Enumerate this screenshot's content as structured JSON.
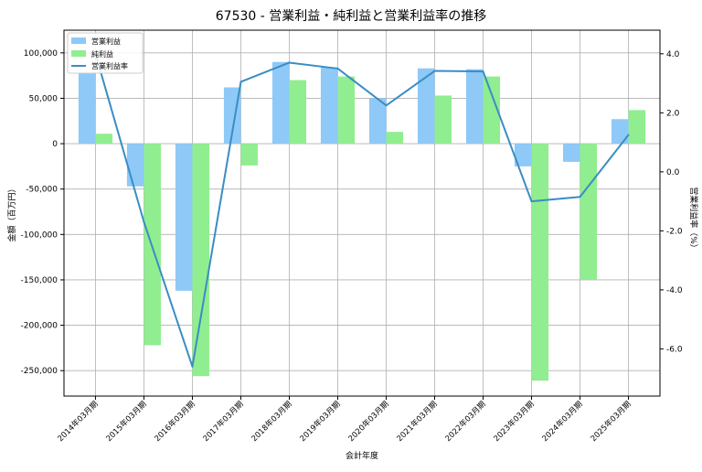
{
  "chart_data": {
    "type": "bar",
    "title": "67530 - 営業利益・純利益と営業利益率の推移",
    "xlabel": "会計年度",
    "ylabel": "金額（百万円）",
    "y2label": "営業利益率（%）",
    "categories": [
      "2014年03月期",
      "2015年03月期",
      "2016年03月期",
      "2017年03月期",
      "2018年03月期",
      "2019年03月期",
      "2020年03月期",
      "2021年03月期",
      "2022年03月期",
      "2023年03月期",
      "2024年03月期",
      "2025年03月期"
    ],
    "series": [
      {
        "name": "営業利益",
        "kind": "bar",
        "axis": "left",
        "color": "#8ec9f7",
        "values": [
          78000,
          -47000,
          -162000,
          62000,
          90000,
          84000,
          50000,
          83000,
          82000,
          -25000,
          -20000,
          27000
        ]
      },
      {
        "name": "純利益",
        "kind": "bar",
        "axis": "left",
        "color": "#90ee90",
        "values": [
          11000,
          -222000,
          -256000,
          -24000,
          70000,
          74000,
          13000,
          53000,
          74000,
          -261000,
          -150000,
          37000
        ]
      },
      {
        "name": "営業利益率",
        "kind": "line",
        "axis": "right",
        "color": "#3a8dc4",
        "values": [
          4.0,
          -1.7,
          -6.6,
          3.05,
          3.7,
          3.5,
          2.25,
          3.42,
          3.4,
          -1.0,
          -0.85,
          1.25
        ]
      }
    ],
    "ylim": [
      -278000,
      125000
    ],
    "y2lim": [
      -7.6,
      4.8
    ],
    "yticks": [
      -250000,
      -200000,
      -150000,
      -100000,
      -50000,
      0,
      50000,
      100000
    ],
    "ytick_labels": [
      "-250,000",
      "-200,000",
      "-150,000",
      "-100,000",
      "-50,000",
      "0",
      "50,000",
      "100,000"
    ],
    "y2ticks": [
      -6,
      -4,
      -2,
      0,
      2,
      4
    ],
    "y2tick_labels": [
      "-6.0",
      "-4.0",
      "-2.0",
      "0.0",
      "2.0",
      "4.0"
    ],
    "grid": true,
    "legend_position": "top-left"
  }
}
